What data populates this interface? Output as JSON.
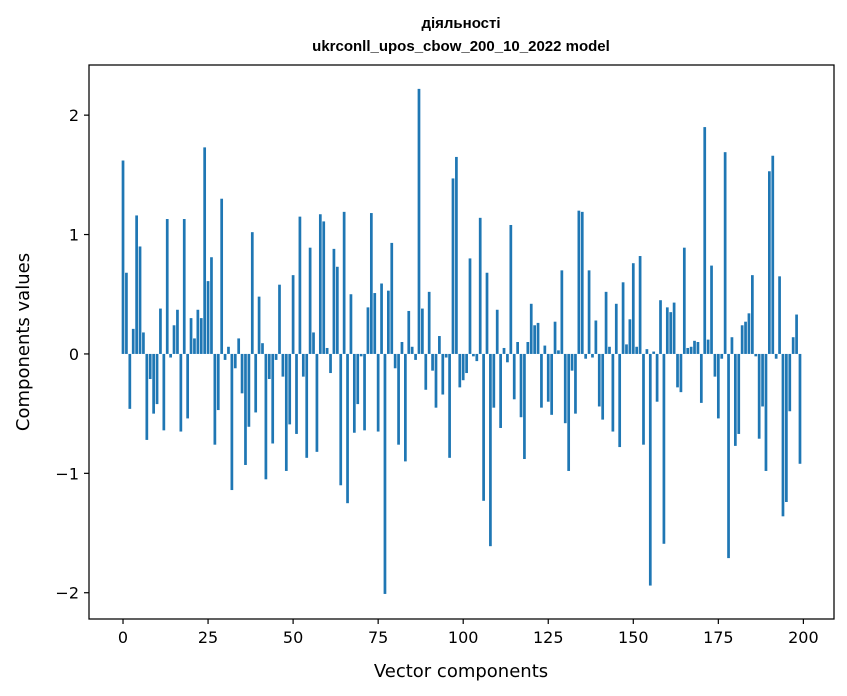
{
  "chart_data": {
    "type": "bar",
    "title": "діяльності",
    "subtitle": "ukrconll_upos_cbow_200_10_2022 model",
    "xlabel": "Vector components",
    "ylabel": "Components values",
    "xlim": [
      -10,
      209
    ],
    "ylim": [
      -2.22,
      2.42
    ],
    "xticks": [
      0,
      25,
      50,
      75,
      100,
      125,
      150,
      175,
      200
    ],
    "xtick_labels": [
      "0",
      "25",
      "50",
      "75",
      "100",
      "125",
      "150",
      "175",
      "200"
    ],
    "yticks": [
      -2,
      -1,
      0,
      1,
      2
    ],
    "ytick_labels": [
      "−2",
      "−1",
      "0",
      "1",
      "2"
    ],
    "grid": false,
    "bar_color": "#1f77b4",
    "x": [
      0,
      1,
      2,
      3,
      4,
      5,
      6,
      7,
      8,
      9,
      10,
      11,
      12,
      13,
      14,
      15,
      16,
      17,
      18,
      19,
      20,
      21,
      22,
      23,
      24,
      25,
      26,
      27,
      28,
      29,
      30,
      31,
      32,
      33,
      34,
      35,
      36,
      37,
      38,
      39,
      40,
      41,
      42,
      43,
      44,
      45,
      46,
      47,
      48,
      49,
      50,
      51,
      52,
      53,
      54,
      55,
      56,
      57,
      58,
      59,
      60,
      61,
      62,
      63,
      64,
      65,
      66,
      67,
      68,
      69,
      70,
      71,
      72,
      73,
      74,
      75,
      76,
      77,
      78,
      79,
      80,
      81,
      82,
      83,
      84,
      85,
      86,
      87,
      88,
      89,
      90,
      91,
      92,
      93,
      94,
      95,
      96,
      97,
      98,
      99,
      100,
      101,
      102,
      103,
      104,
      105,
      106,
      107,
      108,
      109,
      110,
      111,
      112,
      113,
      114,
      115,
      116,
      117,
      118,
      119,
      120,
      121,
      122,
      123,
      124,
      125,
      126,
      127,
      128,
      129,
      130,
      131,
      132,
      133,
      134,
      135,
      136,
      137,
      138,
      139,
      140,
      141,
      142,
      143,
      144,
      145,
      146,
      147,
      148,
      149,
      150,
      151,
      152,
      153,
      154,
      155,
      156,
      157,
      158,
      159,
      160,
      161,
      162,
      163,
      164,
      165,
      166,
      167,
      168,
      169,
      170,
      171,
      172,
      173,
      174,
      175,
      176,
      177,
      178,
      179,
      180,
      181,
      182,
      183,
      184,
      185,
      186,
      187,
      188,
      189,
      190,
      191,
      192,
      193,
      194,
      195,
      196,
      197,
      198,
      199
    ],
    "values": [
      1.62,
      0.68,
      -0.46,
      0.21,
      1.16,
      0.9,
      0.18,
      -0.72,
      -0.21,
      -0.5,
      -0.42,
      0.38,
      -0.64,
      1.13,
      -0.03,
      0.24,
      0.37,
      -0.65,
      1.13,
      -0.54,
      0.3,
      0.13,
      0.37,
      0.3,
      1.73,
      0.61,
      0.81,
      -0.76,
      -0.47,
      1.3,
      -0.05,
      0.06,
      -1.14,
      -0.12,
      0.13,
      -0.33,
      -0.93,
      -0.61,
      1.02,
      -0.49,
      0.48,
      0.09,
      -1.05,
      -0.21,
      -0.75,
      -0.05,
      0.58,
      -0.19,
      -0.98,
      -0.59,
      0.66,
      -0.67,
      1.15,
      -0.19,
      -0.87,
      0.89,
      0.18,
      -0.82,
      1.17,
      1.11,
      0.05,
      -0.16,
      0.88,
      0.73,
      -1.1,
      1.19,
      -1.25,
      0.5,
      -0.66,
      -0.42,
      -0.02,
      -0.64,
      0.39,
      1.18,
      0.51,
      -0.65,
      0.59,
      -2.01,
      0.53,
      0.93,
      -0.12,
      -0.76,
      0.1,
      -0.9,
      0.36,
      0.06,
      -0.05,
      2.22,
      0.38,
      -0.3,
      0.52,
      -0.14,
      -0.45,
      0.15,
      -0.34,
      -0.03,
      -0.87,
      1.47,
      1.65,
      -0.28,
      -0.22,
      -0.16,
      0.8,
      -0.02,
      -0.06,
      1.14,
      -1.23,
      0.68,
      -1.61,
      -0.45,
      0.37,
      -0.62,
      0.05,
      -0.07,
      1.08,
      -0.38,
      0.1,
      -0.53,
      -0.88,
      0.1,
      0.42,
      0.24,
      0.26,
      -0.45,
      0.07,
      -0.4,
      -0.51,
      0.27,
      0.03,
      0.7,
      -0.58,
      -0.98,
      -0.14,
      -0.5,
      1.2,
      1.19,
      -0.04,
      0.7,
      -0.03,
      0.28,
      -0.44,
      -0.55,
      0.52,
      0.06,
      -0.65,
      0.42,
      -0.78,
      0.6,
      0.08,
      0.29,
      0.76,
      0.06,
      0.82,
      -0.76,
      0.04,
      -1.94,
      0.02,
      -0.4,
      0.45,
      -1.59,
      0.39,
      0.35,
      0.43,
      -0.28,
      -0.32,
      0.89,
      0.05,
      0.06,
      0.11,
      0.1,
      -0.41,
      1.9,
      0.12,
      0.74,
      -0.19,
      -0.54,
      -0.04,
      1.69,
      -1.71,
      0.14,
      -0.77,
      -0.67,
      0.24,
      0.27,
      0.34,
      0.66,
      -0.02,
      -0.71,
      -0.44,
      -0.98,
      1.53,
      1.66,
      -0.04,
      0.65,
      -1.36,
      -1.24,
      -0.48,
      0.14,
      0.33,
      -0.92
    ]
  }
}
